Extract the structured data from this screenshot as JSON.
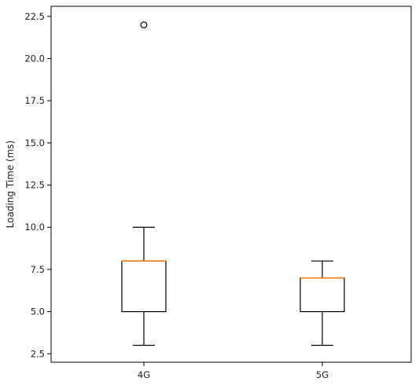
{
  "chart_data": {
    "type": "box",
    "title": "",
    "xlabel": "",
    "ylabel": "Loading Time (ms)",
    "ylim": [
      2,
      23.1
    ],
    "yticks": [
      2.5,
      5.0,
      7.5,
      10.0,
      12.5,
      15.0,
      17.5,
      20.0,
      22.5
    ],
    "ytick_labels": [
      "2.5",
      "5.0",
      "7.5",
      "10.0",
      "12.5",
      "15.0",
      "17.5",
      "20.0",
      "22.5"
    ],
    "categories": [
      "4G",
      "5G"
    ],
    "boxes": [
      {
        "category": "4G",
        "whisker_low": 3,
        "q1": 5,
        "median": 8,
        "q3": 8,
        "whisker_high": 10,
        "outliers": [
          22
        ]
      },
      {
        "category": "5G",
        "whisker_low": 3,
        "q1": 5,
        "median": 7,
        "q3": 7,
        "whisker_high": 8,
        "outliers": []
      }
    ],
    "grid": false,
    "colors": {
      "box": "#000000",
      "median": "#ff7f0e",
      "axes": "#000000"
    }
  }
}
